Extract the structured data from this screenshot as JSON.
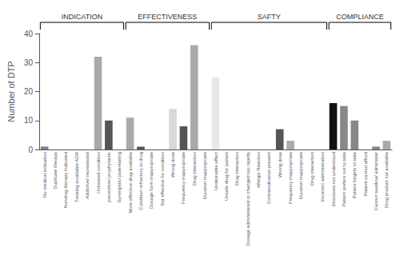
{
  "chart_data": {
    "type": "bar",
    "categories": [
      "No medical indication",
      "Duplicate therapy",
      "Nondrug therapy indicated",
      "Treating avoidable ADR",
      "Addictive/ recreational",
      "Untreated condition",
      "preventive/ prophylactic",
      "Synergistic/ potentiating",
      "More effective drug available",
      "Condition refractory to drug",
      "Dosage form inappropriate",
      "Not effective for condition",
      "Wrong dose",
      "Frequency inappropriate",
      "Drug interaction",
      "Duration inappropriate",
      "Undesirable effect",
      "Unsafe drug for patient",
      "Drug interaction",
      "Dosage administered or changed too rapidly",
      "Allergic Reaction",
      "Contraindication present",
      "Wrong dose",
      "Frequency inappropriate",
      "Duration inappropriate",
      "Drug interaction",
      "Incorrect administration",
      "Directions not understood",
      "Patient prefers not to take",
      "Patient forgets to take",
      "Patient cannot afford",
      "Cannot swallow/ administer",
      "Drug product not available"
    ],
    "values": [
      1,
      0,
      0,
      0,
      0,
      32,
      10,
      0,
      11,
      1,
      0,
      0,
      14,
      8,
      36,
      0,
      25,
      0,
      0,
      0,
      0,
      0,
      7,
      3,
      0,
      0,
      0,
      16,
      15,
      10,
      0,
      1,
      3
    ],
    "colors": [
      "#808080",
      "#888888",
      "#aaaaaa",
      "#cccccc",
      "#aaaaaa",
      "#aaaaaa",
      "#555555",
      "#cccccc",
      "#aaaaaa",
      "#555555",
      "#cccccc",
      "#aaaaaa",
      "#d8d8d8",
      "#555555",
      "#aaaaaa",
      "#cccccc",
      "#e8e8e8",
      "#bbbbbb",
      "#aaaaaa",
      "#cccccc",
      "#cccccc",
      "#cccccc",
      "#555555",
      "#aaaaaa",
      "#cccccc",
      "#aaaaaa",
      "#cccccc",
      "#111111",
      "#888888",
      "#888888",
      "#cccccc",
      "#888888",
      "#aaaaaa"
    ],
    "groups": [
      {
        "name": "INDICATION",
        "start": 0,
        "end": 7
      },
      {
        "name": "EFFECTIVENESS",
        "start": 8,
        "end": 15
      },
      {
        "name": "SAFTY",
        "start": 16,
        "end": 26
      },
      {
        "name": "COMPLIANCE",
        "start": 27,
        "end": 32
      }
    ],
    "ylabel": "Number of DTP",
    "ylim": [
      0,
      40
    ],
    "yticks": [
      0,
      10,
      20,
      30,
      40
    ],
    "grid": false
  }
}
